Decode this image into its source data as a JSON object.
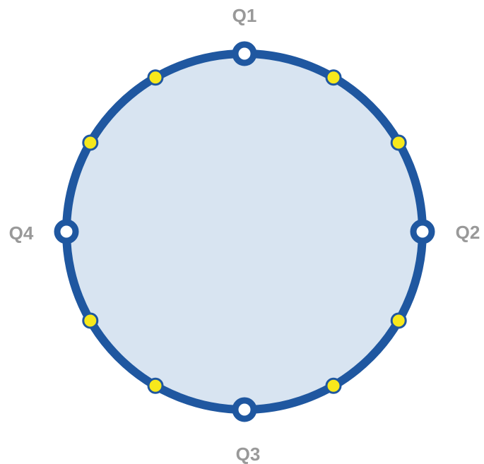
{
  "diagram": {
    "quarters": [
      {
        "label": "Q1",
        "angle_deg": 0
      },
      {
        "label": "Q2",
        "angle_deg": 90
      },
      {
        "label": "Q3",
        "angle_deg": 180
      },
      {
        "label": "Q4",
        "angle_deg": 270
      }
    ],
    "minor_markers_angles_deg": [
      30,
      60,
      120,
      150,
      210,
      240,
      300,
      330
    ],
    "colors": {
      "ring": "#1f57a0",
      "fill": "#d8e4f1",
      "major_marker_fill": "#ffffff",
      "minor_marker_fill": "#f7e81c",
      "label": "#999999"
    }
  }
}
